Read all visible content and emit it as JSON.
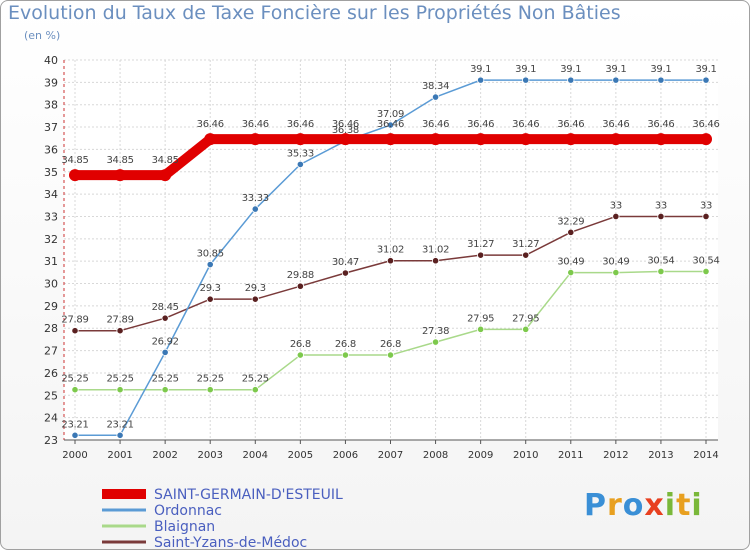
{
  "chart_data": {
    "type": "line",
    "title": "Evolution du Taux de Taxe Foncière sur les Propriétés Non Bâties",
    "subtitle": "(en %)",
    "xlabel": "",
    "ylabel": "",
    "ylim": [
      23,
      40
    ],
    "yticks": [
      "23",
      "24",
      "25",
      "26",
      "27",
      "28",
      "29",
      "30",
      "31",
      "32",
      "33",
      "34",
      "35",
      "36",
      "37",
      "38",
      "39",
      "40"
    ],
    "categories": [
      "2000",
      "2001",
      "2002",
      "2003",
      "2004",
      "2005",
      "2006",
      "2007",
      "2008",
      "2009",
      "2010",
      "2011",
      "2012",
      "2013",
      "2014"
    ],
    "legend_position": "bottom-left",
    "series": [
      {
        "name": "SAINT-GERMAIN-D'ESTEUIL",
        "color": "#e00000",
        "values": [
          34.85,
          34.85,
          34.85,
          36.46,
          36.46,
          36.46,
          36.46,
          36.46,
          36.46,
          36.46,
          36.46,
          36.46,
          36.46,
          36.46,
          36.46
        ],
        "labels": [
          "34.85",
          "34.85",
          "34.85",
          "36.46",
          "36.46",
          "36.46",
          "36.46",
          "36.46",
          "36.46",
          "36.46",
          "36.46",
          "36.46",
          "36.46",
          "36.46",
          "36.46"
        ]
      },
      {
        "name": "Ordonnac",
        "color": "#5b9bd5",
        "marker_color": "#3b78b5",
        "values": [
          23.21,
          23.21,
          26.92,
          30.85,
          33.33,
          35.33,
          36.38,
          37.09,
          38.34,
          39.1,
          39.1,
          39.1,
          39.1,
          39.1,
          39.1
        ],
        "labels": [
          "23.21",
          "23.21",
          "26.92",
          "30.85",
          "33.33",
          "35.33",
          "36.38",
          "37.09",
          "38.34",
          "39.1",
          "39.1",
          "39.1",
          "39.1",
          "39.1",
          "39.1"
        ]
      },
      {
        "name": "Blaignan",
        "color": "#a9d98a",
        "marker_color": "#7dc94c",
        "values": [
          25.25,
          25.25,
          25.25,
          25.25,
          25.25,
          26.8,
          26.8,
          26.8,
          27.38,
          27.95,
          27.95,
          30.49,
          30.49,
          30.54,
          30.54
        ],
        "labels": [
          "25.25",
          "25.25",
          "25.25",
          "25.25",
          "25.25",
          "26.8",
          "26.8",
          "26.8",
          "27.38",
          "27.95",
          "27.95",
          "30.49",
          "30.49",
          "30.54",
          "30.54"
        ]
      },
      {
        "name": "Saint-Yzans-de-Médoc",
        "color": "#7a3a3a",
        "marker_color": "#5a2020",
        "values": [
          27.89,
          27.89,
          28.45,
          29.3,
          29.3,
          29.88,
          30.47,
          31.02,
          31.02,
          31.27,
          31.27,
          32.29,
          33,
          33,
          33
        ],
        "labels": [
          "27.89",
          "27.89",
          "28.45",
          "29.3",
          "29.3",
          "29.88",
          "30.47",
          "31.02",
          "31.02",
          "31.27",
          "31.27",
          "32.29",
          "33",
          "33",
          "33"
        ]
      }
    ]
  },
  "logo": {
    "letters": [
      "P",
      "r",
      "o",
      "x",
      "i",
      "t",
      "i"
    ],
    "colors": [
      "#3a8fd6",
      "#e8a020",
      "#3a8fd6",
      "#e84020",
      "#7ab83a",
      "#e8a020",
      "#7ab83a"
    ]
  }
}
